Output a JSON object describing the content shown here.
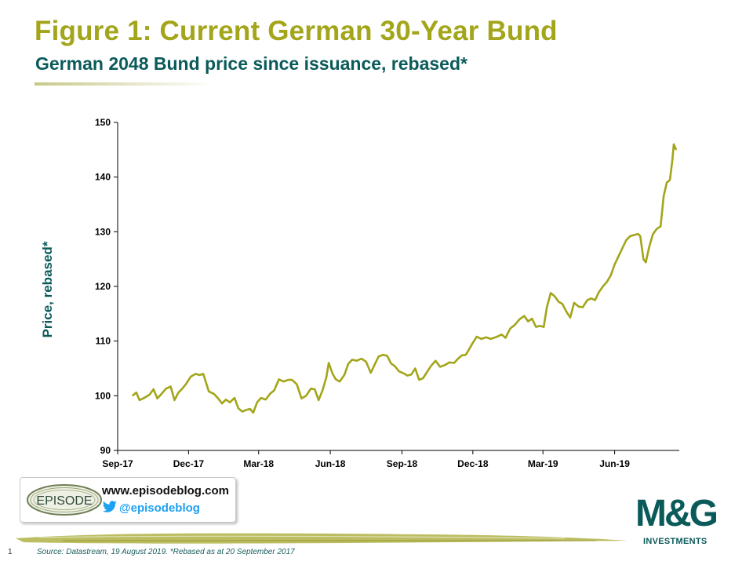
{
  "header": {
    "title": "Figure 1: Current German 30-Year Bund",
    "subtitle": "German 2048 Bund price since issuance, rebased*"
  },
  "colors": {
    "series": "#a3a51a",
    "title": "#a3a51a",
    "subtitle": "#0b5a5a",
    "axis": "#000000"
  },
  "chart_data": {
    "type": "line",
    "ylabel": "Price, rebased*",
    "xlabel": "",
    "ylim": [
      90,
      150
    ],
    "yticks": [
      90,
      100,
      110,
      120,
      130,
      140,
      150
    ],
    "xlim": [
      "2017-09-20",
      "2019-08-19"
    ],
    "xticks": [
      {
        "date": "2017-09-01",
        "label": "Sep-17"
      },
      {
        "date": "2017-12-01",
        "label": "Dec-17"
      },
      {
        "date": "2018-03-01",
        "label": "Mar-18"
      },
      {
        "date": "2018-06-01",
        "label": "Jun-18"
      },
      {
        "date": "2018-09-01",
        "label": "Sep-18"
      },
      {
        "date": "2018-12-01",
        "label": "Dec-18"
      },
      {
        "date": "2019-03-01",
        "label": "Mar-19"
      },
      {
        "date": "2019-06-01",
        "label": "Jun-19"
      }
    ],
    "grid": false,
    "legend": "none",
    "series": [
      {
        "points": [
          [
            "2017-09-20",
            100.0
          ],
          [
            "2017-09-25",
            100.6
          ],
          [
            "2017-09-29",
            99.2
          ],
          [
            "2017-10-05",
            99.6
          ],
          [
            "2017-10-12",
            100.2
          ],
          [
            "2017-10-17",
            101.2
          ],
          [
            "2017-10-22",
            99.5
          ],
          [
            "2017-10-27",
            100.3
          ],
          [
            "2017-11-02",
            101.3
          ],
          [
            "2017-11-08",
            101.7
          ],
          [
            "2017-11-13",
            99.2
          ],
          [
            "2017-11-18",
            100.6
          ],
          [
            "2017-11-23",
            101.3
          ],
          [
            "2017-11-28",
            102.2
          ],
          [
            "2017-12-04",
            103.5
          ],
          [
            "2017-12-10",
            104.0
          ],
          [
            "2017-12-15",
            103.8
          ],
          [
            "2017-12-20",
            104.0
          ],
          [
            "2017-12-27",
            100.8
          ],
          [
            "2018-01-03",
            100.3
          ],
          [
            "2018-01-08",
            99.5
          ],
          [
            "2018-01-13",
            98.6
          ],
          [
            "2018-01-18",
            99.3
          ],
          [
            "2018-01-23",
            98.8
          ],
          [
            "2018-01-29",
            99.6
          ],
          [
            "2018-02-03",
            97.7
          ],
          [
            "2018-02-08",
            97.1
          ],
          [
            "2018-02-13",
            97.4
          ],
          [
            "2018-02-18",
            97.6
          ],
          [
            "2018-02-22",
            96.9
          ],
          [
            "2018-02-27",
            98.8
          ],
          [
            "2018-03-04",
            99.6
          ],
          [
            "2018-03-10",
            99.3
          ],
          [
            "2018-03-16",
            100.4
          ],
          [
            "2018-03-21",
            101.0
          ],
          [
            "2018-03-27",
            103.0
          ],
          [
            "2018-04-02",
            102.6
          ],
          [
            "2018-04-08",
            102.9
          ],
          [
            "2018-04-13",
            102.9
          ],
          [
            "2018-04-19",
            102.1
          ],
          [
            "2018-04-25",
            99.5
          ],
          [
            "2018-05-01",
            100.0
          ],
          [
            "2018-05-07",
            101.3
          ],
          [
            "2018-05-12",
            101.2
          ],
          [
            "2018-05-17",
            99.2
          ],
          [
            "2018-05-22",
            101.0
          ],
          [
            "2018-05-27",
            103.4
          ],
          [
            "2018-05-30",
            106.0
          ],
          [
            "2018-06-04",
            104.0
          ],
          [
            "2018-06-08",
            103.0
          ],
          [
            "2018-06-13",
            102.6
          ],
          [
            "2018-06-19",
            103.8
          ],
          [
            "2018-06-24",
            105.8
          ],
          [
            "2018-06-29",
            106.6
          ],
          [
            "2018-07-05",
            106.4
          ],
          [
            "2018-07-11",
            106.8
          ],
          [
            "2018-07-17",
            106.2
          ],
          [
            "2018-07-23",
            104.2
          ],
          [
            "2018-07-28",
            105.7
          ],
          [
            "2018-08-02",
            107.2
          ],
          [
            "2018-08-08",
            107.5
          ],
          [
            "2018-08-13",
            107.3
          ],
          [
            "2018-08-18",
            105.9
          ],
          [
            "2018-08-23",
            105.4
          ],
          [
            "2018-08-28",
            104.5
          ],
          [
            "2018-09-03",
            104.1
          ],
          [
            "2018-09-08",
            103.7
          ],
          [
            "2018-09-13",
            103.9
          ],
          [
            "2018-09-18",
            105.0
          ],
          [
            "2018-09-23",
            102.9
          ],
          [
            "2018-09-28",
            103.2
          ],
          [
            "2018-10-03",
            104.3
          ],
          [
            "2018-10-08",
            105.4
          ],
          [
            "2018-10-14",
            106.4
          ],
          [
            "2018-10-20",
            105.3
          ],
          [
            "2018-10-26",
            105.6
          ],
          [
            "2018-11-01",
            106.1
          ],
          [
            "2018-11-07",
            106.0
          ],
          [
            "2018-11-12",
            106.8
          ],
          [
            "2018-11-17",
            107.4
          ],
          [
            "2018-11-22",
            107.5
          ],
          [
            "2018-11-27",
            108.7
          ],
          [
            "2018-12-01",
            109.7
          ],
          [
            "2018-12-06",
            110.8
          ],
          [
            "2018-12-12",
            110.4
          ],
          [
            "2018-12-18",
            110.7
          ],
          [
            "2018-12-24",
            110.4
          ],
          [
            "2019-01-01",
            110.8
          ],
          [
            "2019-01-07",
            111.2
          ],
          [
            "2019-01-12",
            110.6
          ],
          [
            "2019-01-18",
            112.3
          ],
          [
            "2019-01-24",
            113.0
          ],
          [
            "2019-01-30",
            114.0
          ],
          [
            "2019-02-05",
            114.6
          ],
          [
            "2019-02-10",
            113.6
          ],
          [
            "2019-02-15",
            114.1
          ],
          [
            "2019-02-20",
            112.6
          ],
          [
            "2019-02-25",
            112.8
          ],
          [
            "2019-03-02",
            112.6
          ],
          [
            "2019-03-06",
            116.2
          ],
          [
            "2019-03-11",
            118.8
          ],
          [
            "2019-03-16",
            118.2
          ],
          [
            "2019-03-21",
            117.2
          ],
          [
            "2019-03-26",
            116.8
          ],
          [
            "2019-03-31",
            115.4
          ],
          [
            "2019-04-05",
            114.3
          ],
          [
            "2019-04-10",
            117.0
          ],
          [
            "2019-04-16",
            116.3
          ],
          [
            "2019-04-21",
            116.2
          ],
          [
            "2019-04-27",
            117.5
          ],
          [
            "2019-05-02",
            117.8
          ],
          [
            "2019-05-07",
            117.5
          ],
          [
            "2019-05-12",
            119.0
          ],
          [
            "2019-05-17",
            120.0
          ],
          [
            "2019-05-22",
            120.8
          ],
          [
            "2019-05-27",
            122.0
          ],
          [
            "2019-06-01",
            124.0
          ],
          [
            "2019-06-06",
            125.5
          ],
          [
            "2019-06-11",
            127.0
          ],
          [
            "2019-06-16",
            128.5
          ],
          [
            "2019-06-21",
            129.2
          ],
          [
            "2019-06-26",
            129.4
          ],
          [
            "2019-07-01",
            129.6
          ],
          [
            "2019-07-04",
            129.2
          ],
          [
            "2019-07-08",
            125.0
          ],
          [
            "2019-07-11",
            124.4
          ],
          [
            "2019-07-15",
            127.0
          ],
          [
            "2019-07-20",
            129.5
          ],
          [
            "2019-07-25",
            130.5
          ],
          [
            "2019-07-30",
            131.0
          ],
          [
            "2019-08-03",
            136.5
          ],
          [
            "2019-08-07",
            139.0
          ],
          [
            "2019-08-11",
            139.5
          ],
          [
            "2019-08-14",
            143.0
          ],
          [
            "2019-08-16",
            146.0
          ],
          [
            "2019-08-19",
            145.0
          ]
        ]
      }
    ]
  },
  "promo": {
    "logo_text": "EPISODE",
    "url": "www.episodeblog.com",
    "twitter": "@episodeblog"
  },
  "brand": {
    "name": "M&G",
    "tagline": "INVESTMENTS"
  },
  "footer": {
    "page_number": "1",
    "source": "Source: Datastream, 19 August 2019. *Rebased as at 20 September 2017"
  }
}
